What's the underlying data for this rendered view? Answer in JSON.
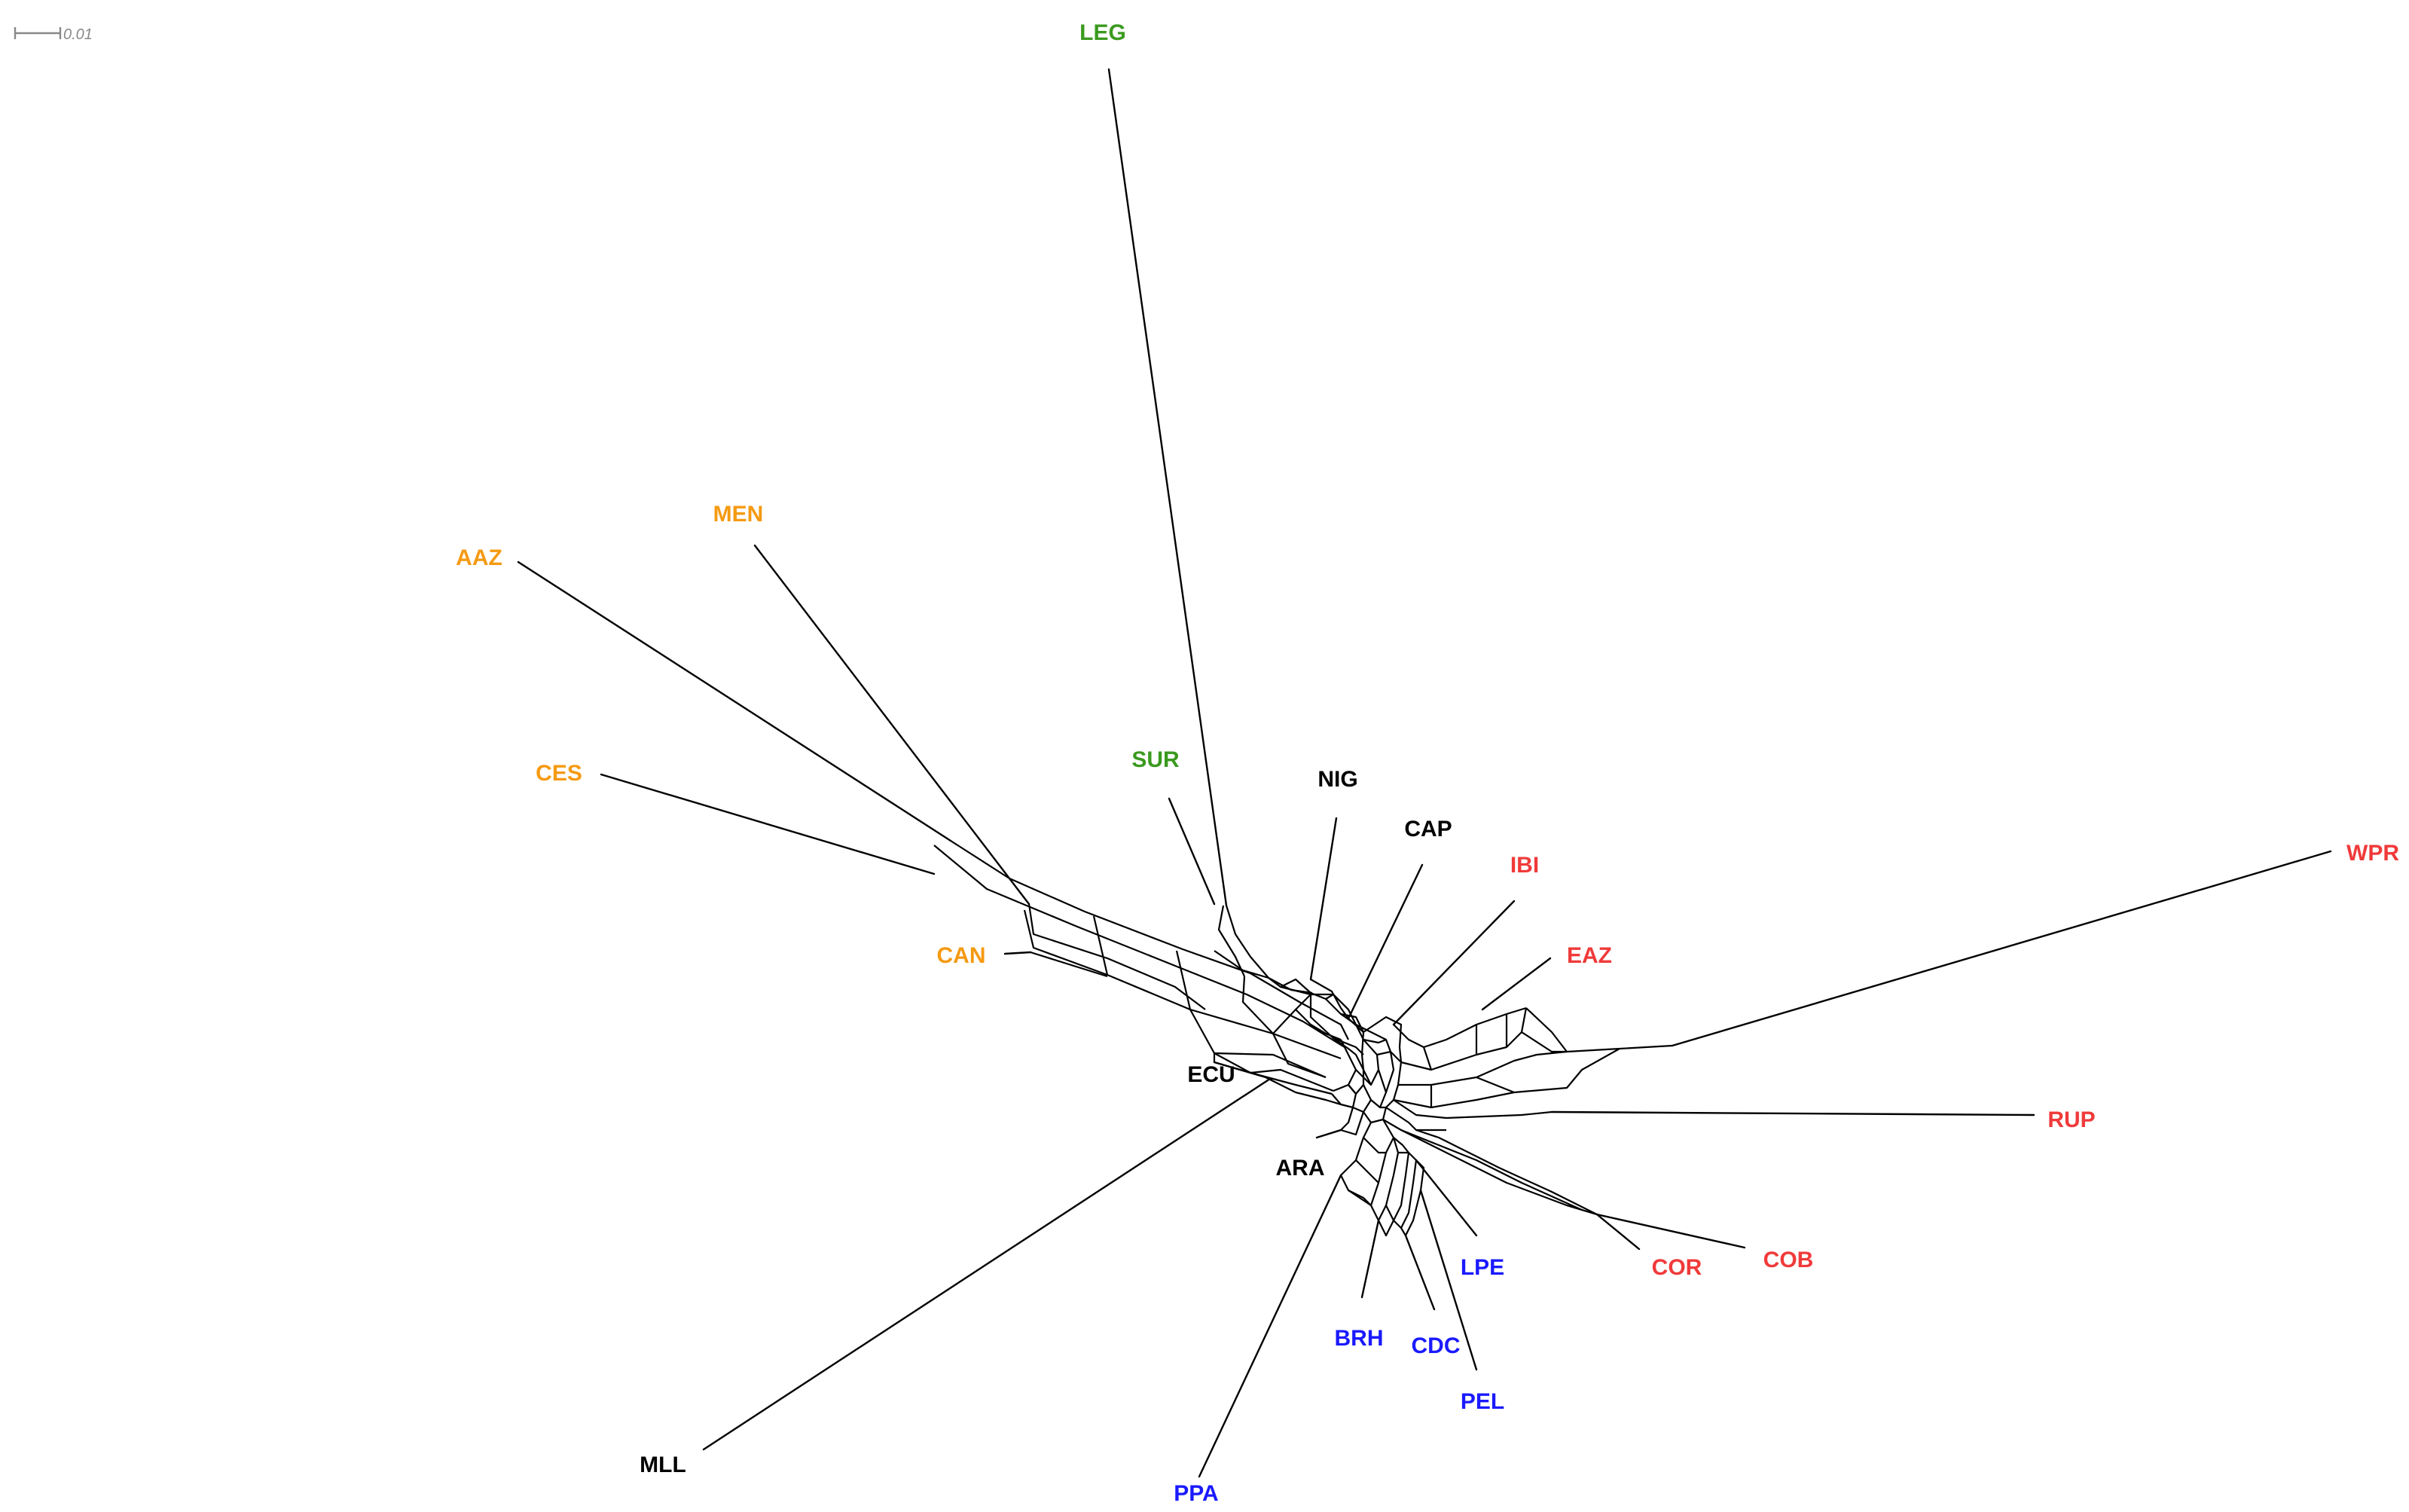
{
  "scale_bar": {
    "label": "0.01"
  },
  "colors": {
    "green": "#3a9a1e",
    "orange": "#f59a12",
    "black": "#000000",
    "red": "#f03a3a",
    "blue": "#1a1aff"
  },
  "taxa": [
    {
      "code": "LEG",
      "color": "green"
    },
    {
      "code": "SUR",
      "color": "green"
    },
    {
      "code": "MEN",
      "color": "orange"
    },
    {
      "code": "AAZ",
      "color": "orange"
    },
    {
      "code": "CES",
      "color": "orange"
    },
    {
      "code": "CAN",
      "color": "orange"
    },
    {
      "code": "NIG",
      "color": "black"
    },
    {
      "code": "CAP",
      "color": "black"
    },
    {
      "code": "ECU",
      "color": "black"
    },
    {
      "code": "ARA",
      "color": "black"
    },
    {
      "code": "MLL",
      "color": "black"
    },
    {
      "code": "IBI",
      "color": "red"
    },
    {
      "code": "EAZ",
      "color": "red"
    },
    {
      "code": "WPR",
      "color": "red"
    },
    {
      "code": "RUP",
      "color": "red"
    },
    {
      "code": "COB",
      "color": "red"
    },
    {
      "code": "COR",
      "color": "red"
    },
    {
      "code": "LPE",
      "color": "blue"
    },
    {
      "code": "CDC",
      "color": "blue"
    },
    {
      "code": "PEL",
      "color": "blue"
    },
    {
      "code": "BRH",
      "color": "blue"
    },
    {
      "code": "PPA",
      "color": "blue"
    }
  ]
}
